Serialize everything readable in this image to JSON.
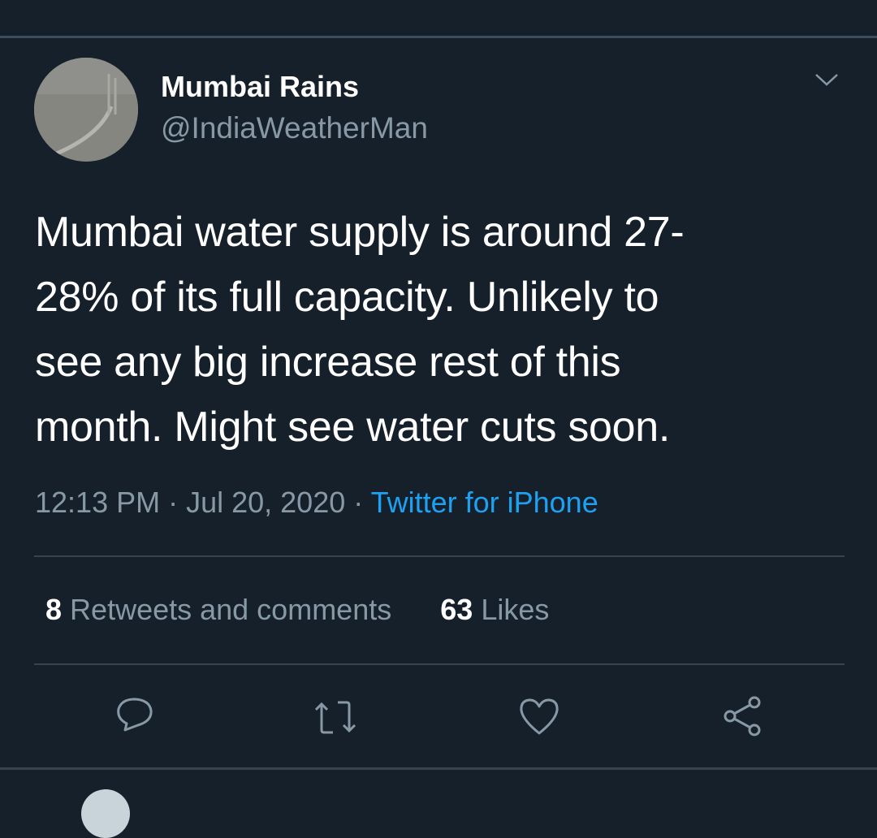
{
  "author": {
    "name": "Mumbai Rains",
    "handle": "@IndiaWeatherMan"
  },
  "tweet": {
    "lines": [
      "Mumbai water supply is around 27-",
      "28% of its full capacity. Unlikely to",
      "see any big increase rest of this",
      "month. Might see water cuts soon."
    ]
  },
  "meta": {
    "time": "12:13 PM",
    "separator": " · ",
    "date": "Jul 20, 2020",
    "source": "Twitter for iPhone"
  },
  "stats": {
    "retweets_count": "8",
    "retweets_label": "Retweets and comments",
    "likes_count": "63",
    "likes_label": "Likes"
  },
  "icons": [
    "chevron-down-icon",
    "reply-icon",
    "retweet-icon",
    "like-icon",
    "share-icon"
  ],
  "colors": {
    "background": "#16202b",
    "accent": "#1da1f2",
    "secondary_text": "#8899a6"
  }
}
